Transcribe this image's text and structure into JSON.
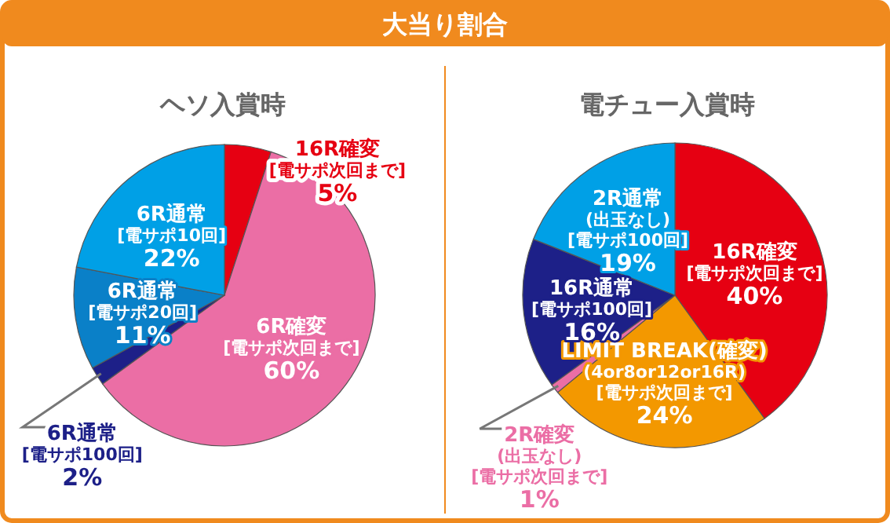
{
  "chart_data": [
    {
      "type": "pie",
      "title": "ヘソ入賞時",
      "annotations": [
        "大当り割合"
      ],
      "categories": [
        "16R確変\n[電サポ次回まで]",
        "6R確変\n[電サポ次回まで]",
        "6R通常\n[電サポ100回]",
        "6R通常\n[電サポ20回]",
        "6R通常\n[電サポ10回]"
      ],
      "values": [
        5,
        60,
        2,
        11,
        22
      ],
      "colors": [
        "#e60012",
        "#eb6ea5",
        "#1d2088",
        "#0a80c8",
        "#00a0e6"
      ],
      "value_labels": [
        "5%",
        "60%",
        "2%",
        "11%",
        "22%"
      ]
    },
    {
      "type": "pie",
      "title": "電チュー入賞時",
      "categories": [
        "16R確変\n[電サポ次回まで]",
        "LIMIT BREAK(確変)\n(4or8or12or16R)\n[電サポ次回まで]",
        "2R確変\n(出玉なし)\n[電サポ次回まで]",
        "16R通常\n[電サポ100回]",
        "2R通常\n(出玉なし)\n[電サポ100回]"
      ],
      "values": [
        40,
        24,
        1,
        16,
        19
      ],
      "colors": [
        "#e60012",
        "#f39800",
        "#eb6ea5",
        "#1d2088",
        "#00a0e6"
      ],
      "value_labels": [
        "40%",
        "24%",
        "1%",
        "16%",
        "19%"
      ]
    }
  ]
}
